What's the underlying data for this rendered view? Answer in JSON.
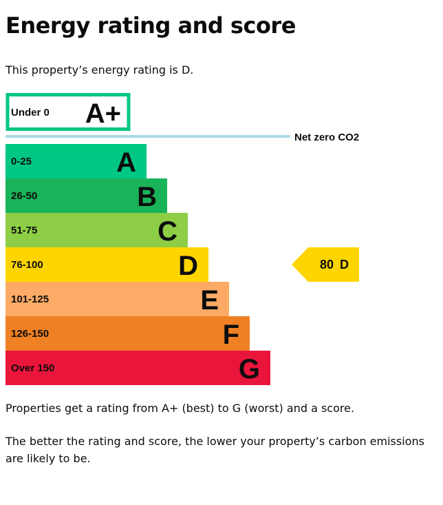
{
  "heading": "Energy rating and score",
  "intro_prefix": "This property’s energy rating is ",
  "intro_rating": "D",
  "intro_suffix": ".",
  "paragraph_1": "Properties get a rating from A+ (best) to G (worst) and a score.",
  "paragraph_2": "The better the rating and score, the lower your property’s carbon emissions are likely to be.",
  "chart_data": {
    "type": "bar",
    "net_zero_label": "Net zero CO2",
    "top_band": {
      "range": "Under 0",
      "letter": "A+",
      "color": "#00c781"
    },
    "bands": [
      {
        "range": "0-25",
        "letter": "A",
        "color": "#00c781"
      },
      {
        "range": "26-50",
        "letter": "B",
        "color": "#19b459"
      },
      {
        "range": "51-75",
        "letter": "C",
        "color": "#8dce46"
      },
      {
        "range": "76-100",
        "letter": "D",
        "color": "#ffd500"
      },
      {
        "range": "101-125",
        "letter": "E",
        "color": "#fcaa65"
      },
      {
        "range": "126-150",
        "letter": "F",
        "color": "#ef8023"
      },
      {
        "range": "Over 150",
        "letter": "G",
        "color": "#e9153b"
      }
    ],
    "current": {
      "score": "80",
      "letter": "D",
      "color": "#ffd500"
    },
    "net_zero_line_color": "#add8e6"
  }
}
